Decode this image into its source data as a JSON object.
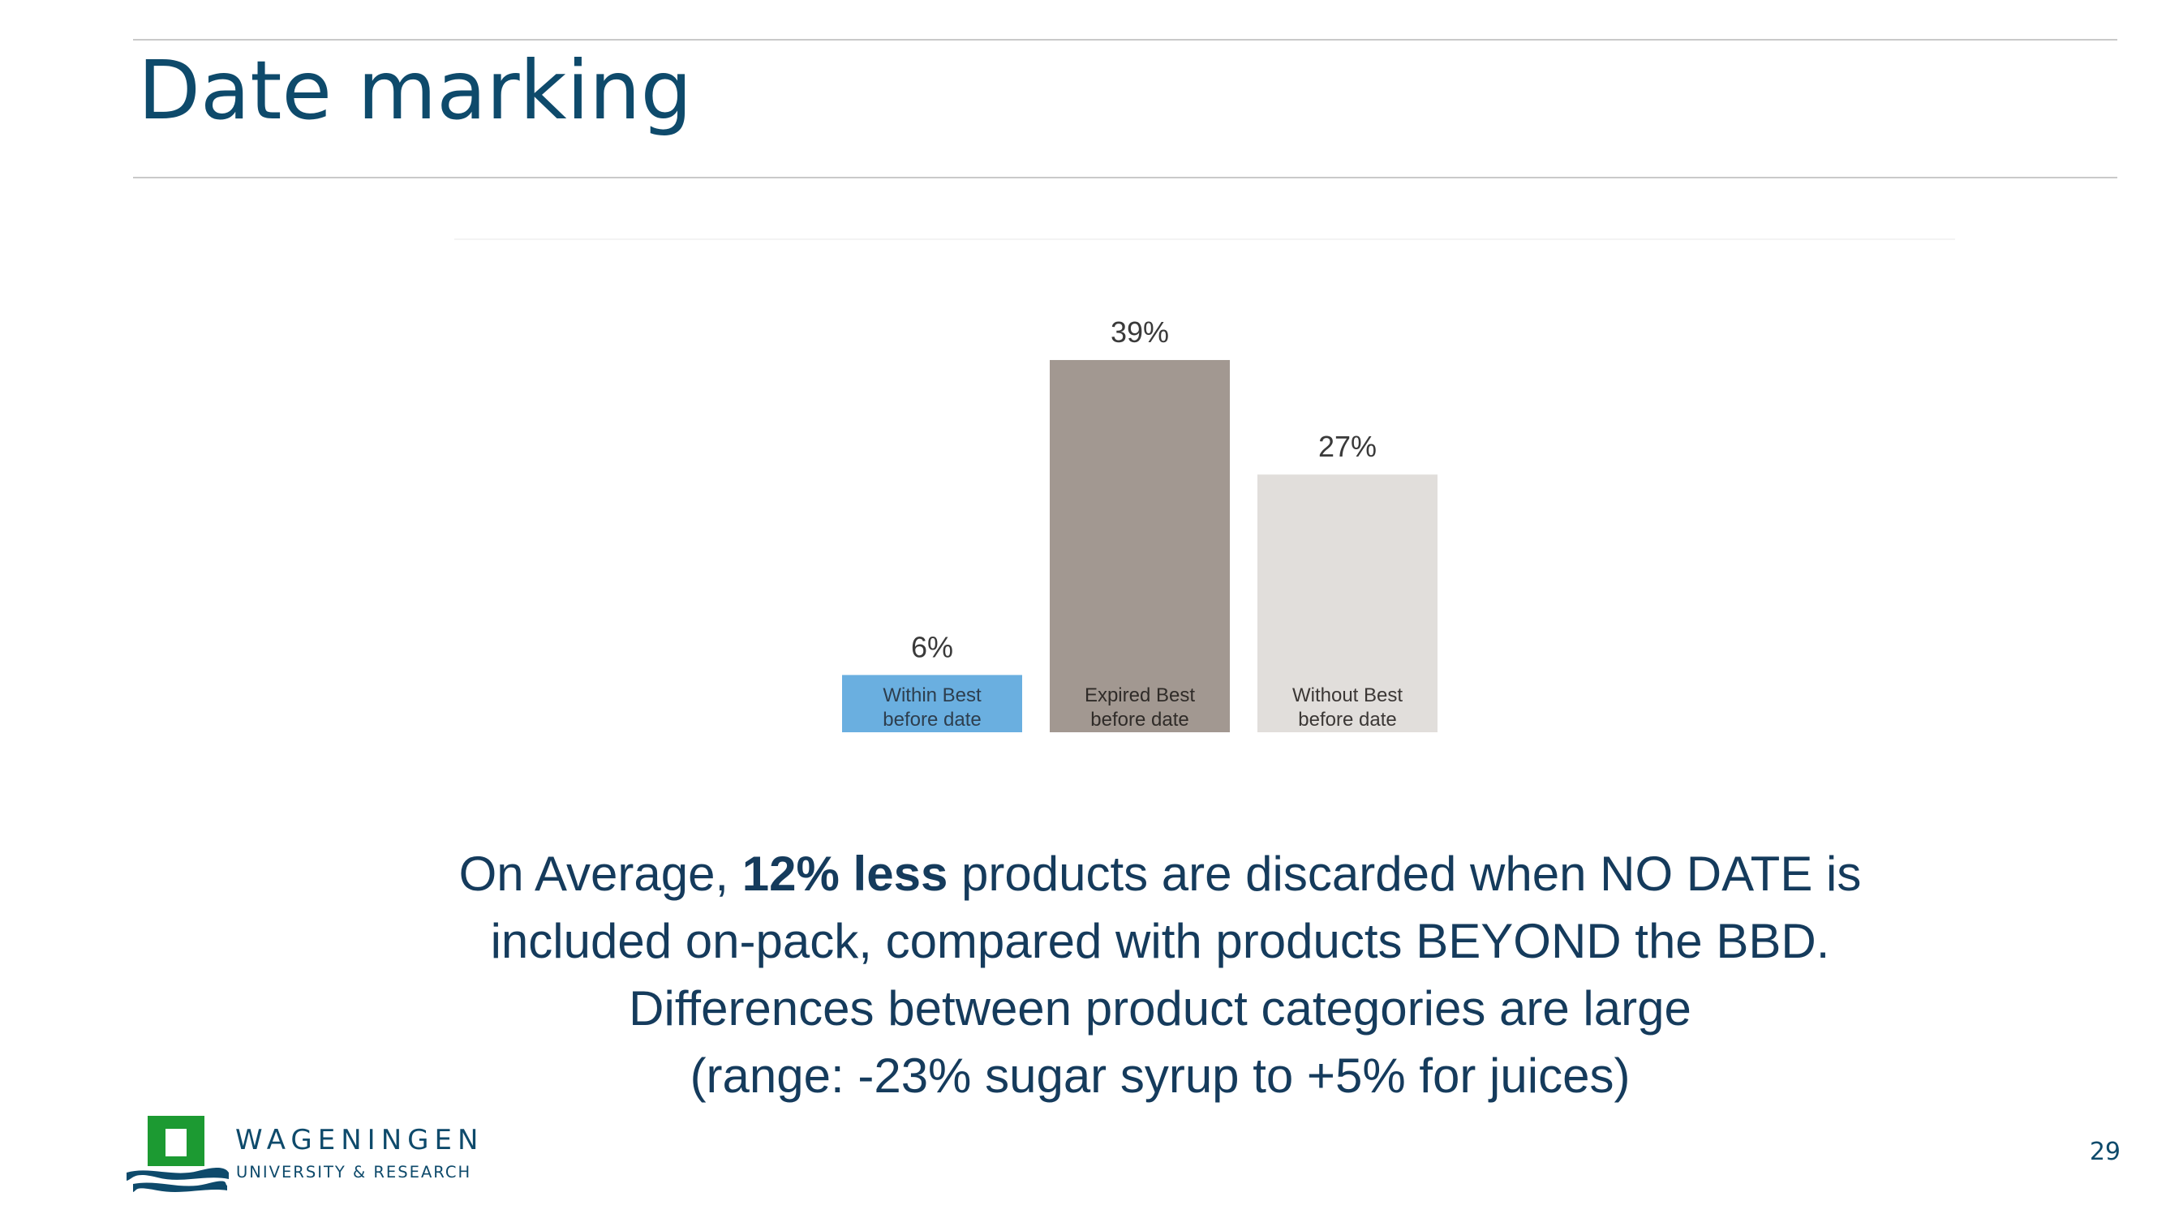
{
  "slide": {
    "title": "Date marking",
    "page_number": "29"
  },
  "chart_data": {
    "type": "bar",
    "categories": [
      "Within Best before date",
      "Expired Best before date",
      "Without Best before date"
    ],
    "category_lines": [
      [
        "Within Best",
        "before date"
      ],
      [
        "Expired Best",
        "before date"
      ],
      [
        "Without Best",
        "before date"
      ]
    ],
    "values": [
      6,
      39,
      27
    ],
    "value_labels": [
      "6%",
      "39%",
      "27%"
    ],
    "colors": [
      "#6aafe0",
      "#a29891",
      "#e1dedb"
    ],
    "label_colors": [
      "#2d3e4e",
      "#2f2b28",
      "#3b3735"
    ],
    "title": "",
    "xlabel": "",
    "ylabel": "",
    "ylim": [
      0,
      39
    ],
    "grid": false,
    "legend": false
  },
  "summary": {
    "line1_before": "On Average, ",
    "line1_bold": "12% less",
    "line1_after": " products are discarded when NO DATE is",
    "line2": "included on-pack, compared with products BEYOND the BBD.",
    "line3": "Differences between product categories are large",
    "line4": "(range:  -23% sugar syrup to +5% for juices)"
  },
  "logo": {
    "name": "WAGENINGEN",
    "subtitle": "UNIVERSITY & RESEARCH",
    "colors": {
      "green": "#1c9a32",
      "navy": "#0e4a6b"
    }
  }
}
